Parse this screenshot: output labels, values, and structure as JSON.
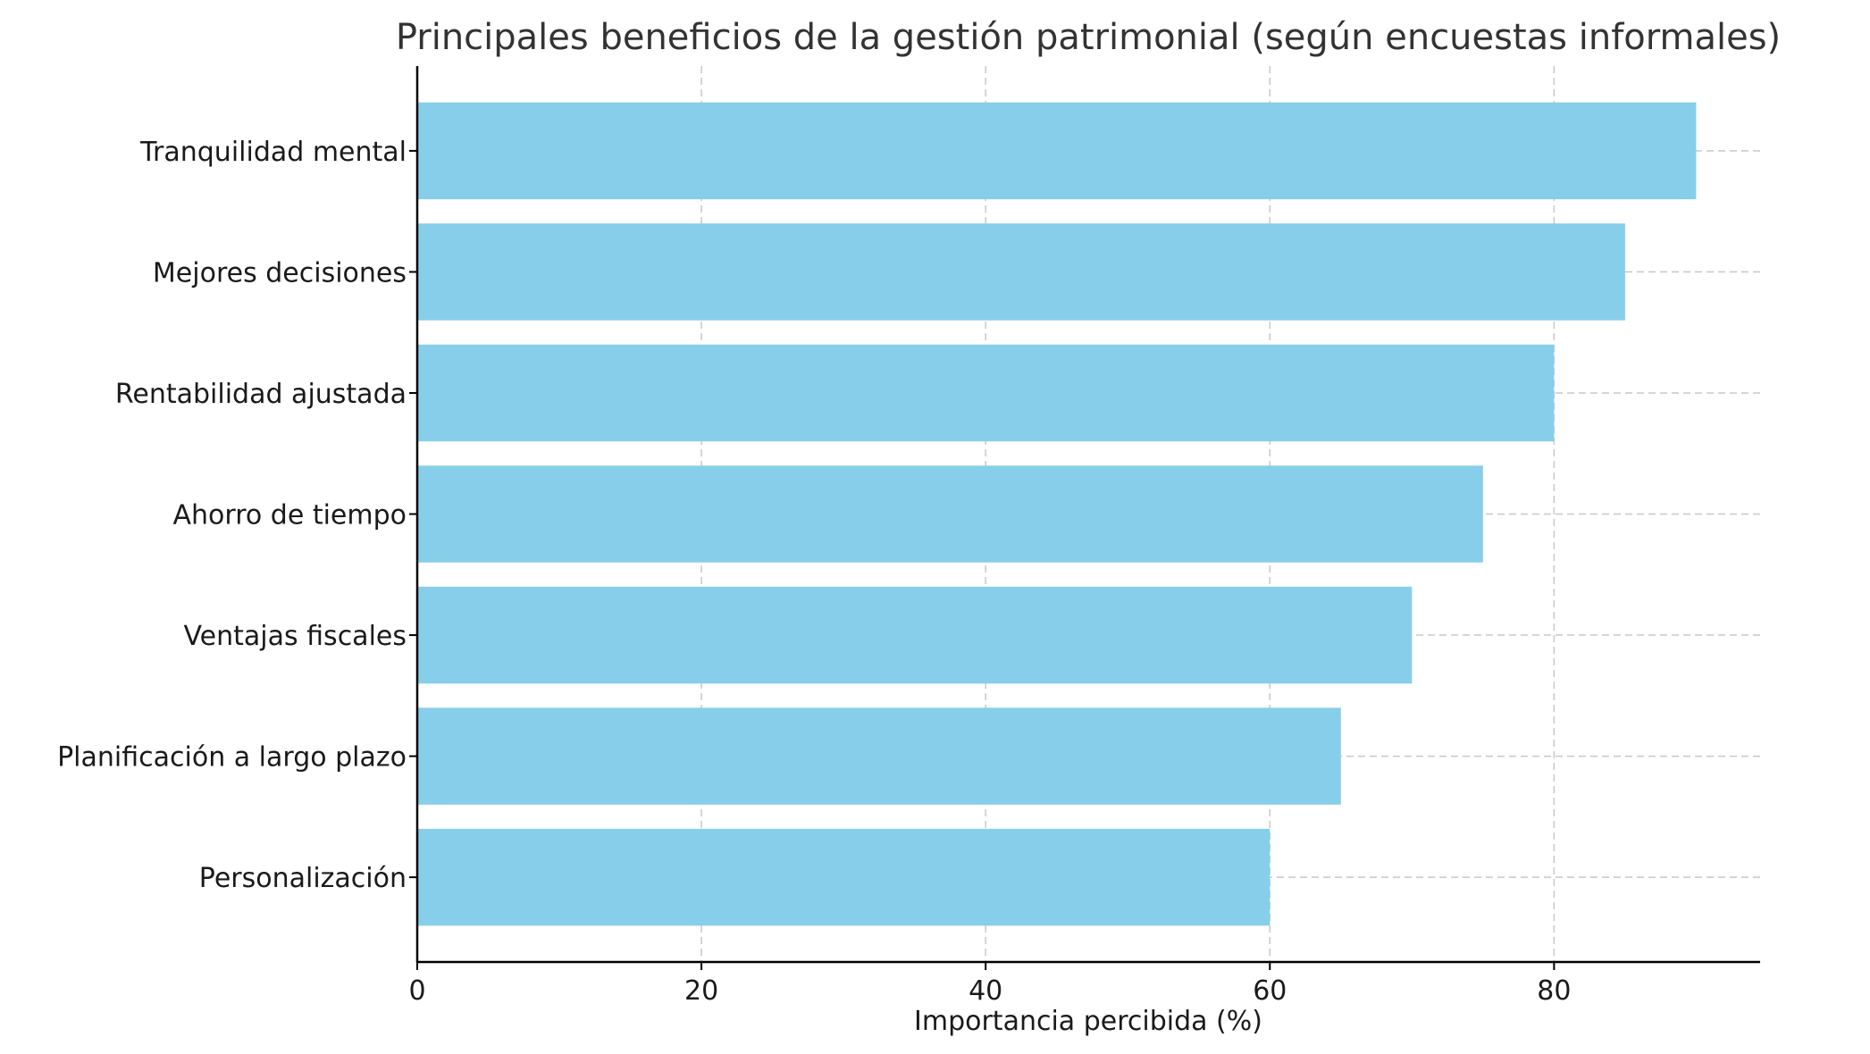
{
  "chart_data": {
    "type": "bar",
    "orientation": "horizontal",
    "title": "Principales beneficios de la gestión patrimonial (según encuestas informales)",
    "xlabel": "Importancia percibida (%)",
    "ylabel": "",
    "categories": [
      "Tranquilidad mental",
      "Mejores decisiones",
      "Rentabilidad ajustada",
      "Ahorro de tiempo",
      "Ventajas fiscales",
      "Planificación a largo plazo",
      "Personalización"
    ],
    "values": [
      90,
      85,
      80,
      75,
      70,
      65,
      60
    ],
    "xlim": [
      0,
      94.5
    ],
    "xticks": [
      0,
      20,
      40,
      60,
      80
    ],
    "xtick_labels": [
      "0",
      "20",
      "40",
      "60",
      "80"
    ],
    "grid": true,
    "bar_color": "#87CEEB"
  }
}
